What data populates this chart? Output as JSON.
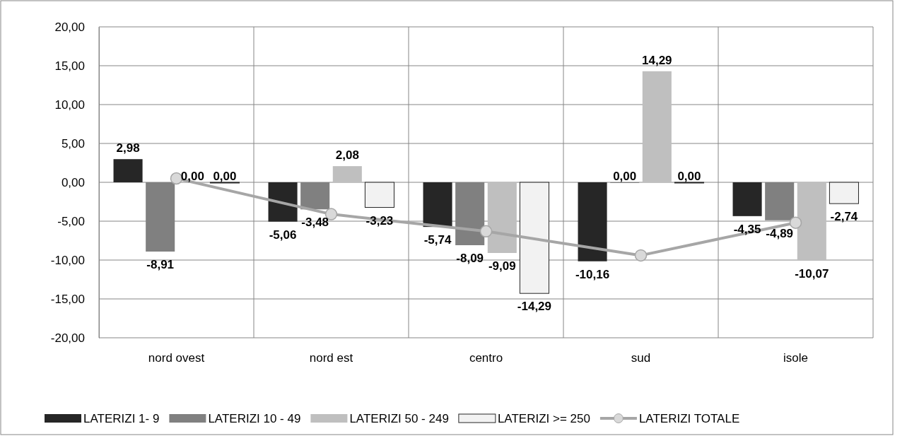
{
  "chart_data": {
    "type": "bar",
    "categories": [
      "nord ovest",
      "nord est",
      "centro",
      "sud",
      "isole"
    ],
    "series": [
      {
        "name": "LATERIZI 1- 9",
        "color": "#262626",
        "values": [
          2.98,
          -5.06,
          -5.74,
          -10.16,
          -4.35
        ],
        "value_labels": [
          "2,98",
          "-5,06",
          "-5,74",
          "-10,16",
          "-4,35"
        ]
      },
      {
        "name": "LATERIZI 10 - 49",
        "color": "#808080",
        "values": [
          -8.91,
          -3.48,
          -8.09,
          0.0,
          -4.89
        ],
        "value_labels": [
          "-8,91",
          "-3,48",
          "-8,09",
          "0,00",
          "-4,89"
        ]
      },
      {
        "name": "LATERIZI 50 - 249",
        "color": "#bfbfbf",
        "values": [
          0.0,
          2.08,
          -9.09,
          14.29,
          -10.07
        ],
        "value_labels": [
          "0,00",
          "2,08",
          "-9,09",
          "14,29",
          "-10,07"
        ]
      },
      {
        "name": "LATERIZI >= 250",
        "color": "#f2f2f2",
        "values": [
          0.0,
          -3.23,
          -14.29,
          0.0,
          -2.74
        ],
        "value_labels": [
          "0,00",
          "-3,23",
          "-14,29",
          "0,00",
          "-2,74"
        ]
      },
      {
        "name": "LATERIZI TOTALE",
        "type": "line",
        "color": "#a6a6a6",
        "marker": "circle",
        "values": [
          0.5,
          -4.1,
          -6.3,
          -9.4,
          -5.2
        ]
      }
    ],
    "ylim": [
      -20,
      20
    ],
    "yticks": [
      {
        "value": -20,
        "label": "-20,00"
      },
      {
        "value": -15,
        "label": "-15,00"
      },
      {
        "value": -10,
        "label": "-10,00"
      },
      {
        "value": -5,
        "label": "-5,00"
      },
      {
        "value": 0,
        "label": "0,00"
      },
      {
        "value": 5,
        "label": "5,00"
      },
      {
        "value": 10,
        "label": "10,00"
      },
      {
        "value": 15,
        "label": "15,00"
      },
      {
        "value": 20,
        "label": "20,00"
      }
    ],
    "grid": true,
    "legend": "bottom"
  }
}
